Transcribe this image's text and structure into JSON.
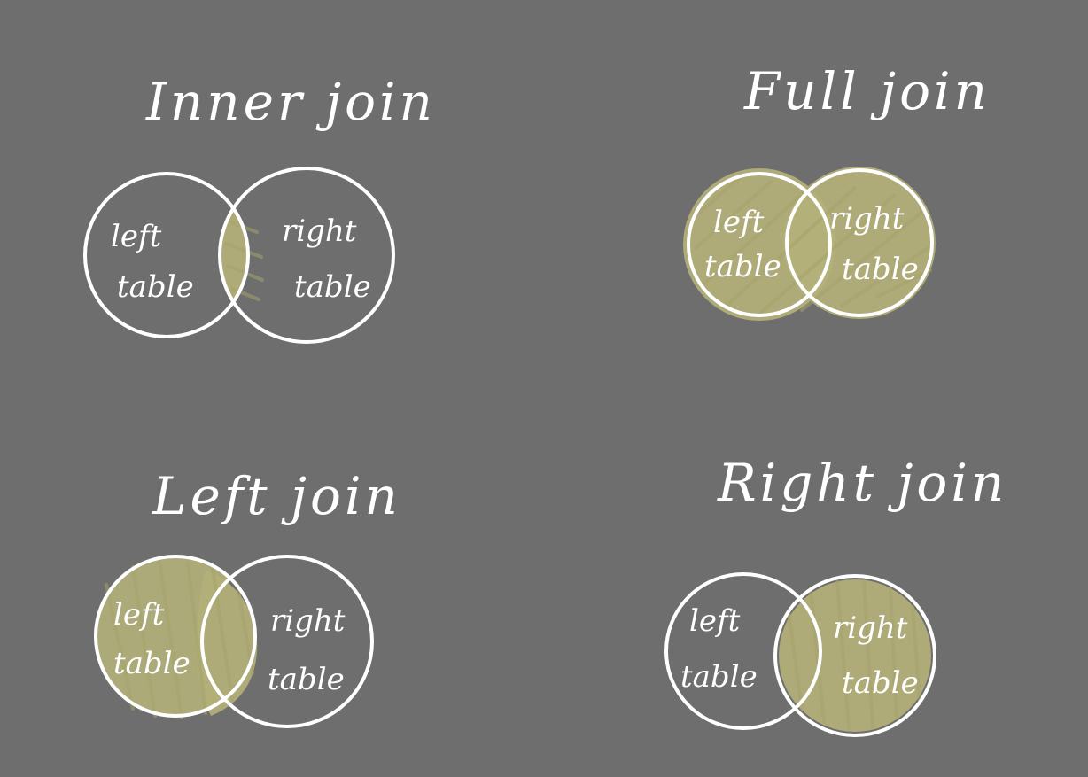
{
  "diagrams": {
    "inner": {
      "title": "Inner join",
      "left": [
        "left",
        "table"
      ],
      "right": [
        "right",
        "table"
      ],
      "shaded": "intersection"
    },
    "full": {
      "title": "Full join",
      "left": [
        "left",
        "table"
      ],
      "right": [
        "right",
        "table"
      ],
      "shaded": "both"
    },
    "left": {
      "title": "Left join",
      "left": [
        "left",
        "table"
      ],
      "right": [
        "right",
        "table"
      ],
      "shaded": "left"
    },
    "right": {
      "title": "Right join",
      "left": [
        "left",
        "table"
      ],
      "right": [
        "right",
        "table"
      ],
      "shaded": "right"
    }
  },
  "colors": {
    "background": "#6e6e6e",
    "stroke": "#ffffff",
    "fill": "#b3b07a"
  }
}
